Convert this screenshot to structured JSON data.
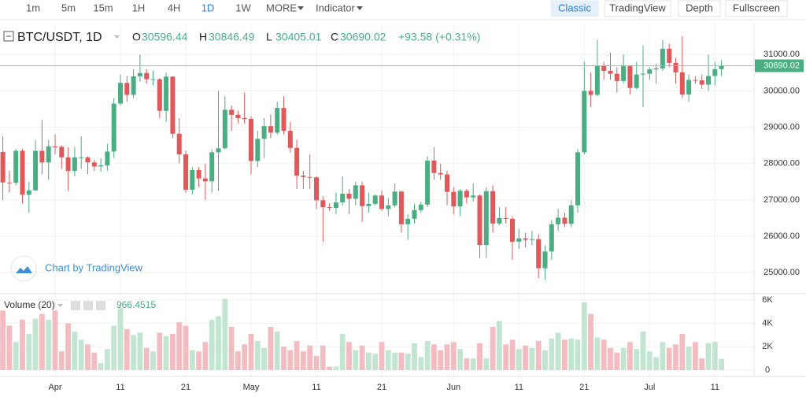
{
  "toolbar": {
    "intervals": [
      "1m",
      "5m",
      "15m",
      "1H",
      "4H",
      "1D",
      "1W"
    ],
    "active_interval": 5,
    "more": "MORE",
    "indicator": "Indicator",
    "views": [
      "Classic",
      "TradingView",
      "Depth",
      "Fullscreen"
    ],
    "active_view": 0
  },
  "watermark": "Chart by TradingView",
  "chart_data": {
    "type": "candlestick",
    "symbol": "BTC/USDT, 1D",
    "ohlc_prefixes": [
      "O",
      "H",
      "L",
      "C"
    ],
    "change_label": "+93.58 (+0.31%)",
    "categories": [
      null,
      null,
      null,
      null,
      null,
      null,
      null,
      null,
      "Apr",
      null,
      null,
      null,
      null,
      null,
      null,
      null,
      null,
      null,
      "11",
      null,
      null,
      null,
      null,
      null,
      null,
      null,
      null,
      null,
      "21",
      null,
      null,
      null,
      null,
      null,
      null,
      null,
      null,
      null,
      "May",
      null,
      null,
      null,
      null,
      null,
      null,
      null,
      null,
      null,
      "11",
      null,
      null,
      null,
      null,
      null,
      null,
      null,
      null,
      null,
      "21",
      null,
      null,
      null,
      null,
      null,
      null,
      null,
      null,
      null,
      null,
      "Jun",
      null,
      null,
      null,
      null,
      null,
      null,
      null,
      null,
      null,
      "11",
      null,
      null,
      null,
      null,
      null,
      null,
      null,
      null,
      null,
      "21",
      null,
      null,
      null,
      null,
      null,
      null,
      null,
      null,
      null,
      "Jul",
      null,
      null,
      null,
      null,
      null,
      null,
      null,
      null,
      null,
      "11",
      null
    ],
    "open": [
      28320,
      27480,
      27470,
      28350,
      27140,
      27260,
      28350,
      28030,
      28470,
      28460,
      28170,
      27800,
      28170,
      28170,
      28030,
      27920,
      27950,
      28330,
      29650,
      30220,
      29890,
      30400,
      30490,
      30320,
      30320,
      29450,
      30390,
      28820,
      28250,
      27280,
      27820,
      27590,
      27510,
      28310,
      28420,
      29480,
      29340,
      29250,
      29230,
      28070,
      28680,
      29030,
      28850,
      29530,
      28900,
      28430,
      27670,
      27630,
      27620,
      26990,
      26800,
      26780,
      26930,
      27170,
      27030,
      27400,
      26830,
      26890,
      27120,
      26750,
      26850,
      27230,
      26330,
      26480,
      26720,
      26870,
      28080,
      27740,
      27700,
      27220,
      26820,
      27250,
      27070,
      27120,
      25760,
      27240,
      26350,
      26500,
      26480,
      25850,
      25940,
      25900,
      25920,
      25120,
      25580,
      26330,
      26510,
      26340,
      26850,
      28310,
      30000,
      29890,
      30690,
      30550,
      30470,
      30270,
      30690,
      30080,
      30450,
      30470,
      30590,
      30620,
      31160,
      30770,
      30510,
      29900,
      30300,
      30290,
      30170,
      30410,
      30596.44
    ],
    "high": [
      28750,
      27800,
      28400,
      28400,
      27500,
      28650,
      29200,
      28650,
      28800,
      28500,
      28450,
      28450,
      28750,
      28200,
      28100,
      28150,
      28550,
      29800,
      30450,
      30400,
      30600,
      31000,
      30600,
      30550,
      30350,
      30500,
      30400,
      29250,
      28350,
      27900,
      27900,
      28000,
      28400,
      30000,
      29850,
      29600,
      29450,
      29950,
      29300,
      28900,
      29250,
      29350,
      29700,
      29850,
      29150,
      28650,
      27800,
      28250,
      27650,
      27100,
      26900,
      27200,
      27650,
      27300,
      27500,
      27500,
      27200,
      27150,
      27250,
      27050,
      27450,
      27250,
      26600,
      26900,
      26950,
      28200,
      28450,
      28000,
      27800,
      27350,
      27300,
      27300,
      27450,
      27150,
      27350,
      27400,
      26800,
      26800,
      26550,
      26200,
      26100,
      26150,
      26050,
      25750,
      26450,
      26750,
      26650,
      27000,
      28400,
      30800,
      30500,
      31400,
      30800,
      31050,
      30650,
      31000,
      30700,
      30800,
      31250,
      30650,
      30750,
      31400,
      31300,
      30900,
      31500,
      30450,
      30400,
      30450,
      31000,
      30800,
      30846.49
    ],
    "low": [
      27000,
      27200,
      27400,
      26900,
      26650,
      27250,
      27700,
      27550,
      28250,
      27850,
      27250,
      27650,
      27850,
      27700,
      27800,
      27780,
      27800,
      28150,
      29600,
      29700,
      29800,
      30250,
      30200,
      30150,
      29250,
      29150,
      28700,
      28000,
      27200,
      27150,
      27350,
      27000,
      27200,
      27250,
      28400,
      28900,
      29100,
      29100,
      27700,
      27900,
      28150,
      28700,
      28800,
      28800,
      28300,
      27300,
      27300,
      27300,
      26750,
      25850,
      26700,
      26600,
      26850,
      26600,
      26850,
      26400,
      26650,
      26850,
      26700,
      26550,
      26800,
      26100,
      25900,
      26350,
      26650,
      26800,
      27550,
      27550,
      26850,
      26600,
      26550,
      26900,
      26950,
      25400,
      25400,
      26100,
      26300,
      26350,
      25350,
      25650,
      25700,
      25750,
      24850,
      24800,
      25350,
      26150,
      26250,
      26250,
      26650,
      28250,
      29550,
      29850,
      30300,
      30300,
      29950,
      30200,
      29900,
      30050,
      29550,
      30300,
      30200,
      30550,
      30650,
      30200,
      29800,
      29700,
      30200,
      30050,
      30000,
      30150,
      30405.01
    ],
    "close": [
      27480,
      27470,
      28350,
      27140,
      27260,
      28350,
      28030,
      28470,
      28460,
      28170,
      27800,
      28170,
      28170,
      28030,
      27920,
      27950,
      28330,
      29650,
      30220,
      29890,
      30400,
      30490,
      30320,
      30320,
      29450,
      30390,
      28820,
      28250,
      27280,
      27820,
      27590,
      27510,
      28310,
      28420,
      29480,
      29340,
      29250,
      29230,
      28070,
      28680,
      29030,
      28850,
      29530,
      28900,
      28430,
      27670,
      27630,
      27620,
      26990,
      26800,
      26780,
      26930,
      27170,
      27030,
      27400,
      26830,
      26890,
      27120,
      26750,
      26850,
      27230,
      26330,
      26480,
      26720,
      26870,
      28080,
      27740,
      27700,
      27220,
      26820,
      27250,
      27070,
      27120,
      25760,
      27240,
      26350,
      26500,
      26480,
      25850,
      25940,
      25900,
      25920,
      25120,
      25580,
      26330,
      26510,
      26340,
      26850,
      28310,
      30000,
      29890,
      30690,
      30550,
      30470,
      30270,
      30690,
      30080,
      30450,
      30470,
      30590,
      30620,
      31160,
      30770,
      30510,
      29900,
      30300,
      30290,
      30170,
      30410,
      30596.44,
      30690.02
    ],
    "volume": [
      5100,
      3800,
      2400,
      4300,
      3100,
      4400,
      4800,
      4300,
      5100,
      1600,
      4000,
      3300,
      2600,
      2200,
      1500,
      600,
      1800,
      3800,
      5300,
      3500,
      3000,
      3200,
      1900,
      1600,
      3200,
      2900,
      3100,
      4100,
      3800,
      1700,
      1600,
      2400,
      4300,
      4600,
      6100,
      3700,
      1600,
      2200,
      3100,
      2500,
      1900,
      3700,
      3300,
      2000,
      1700,
      2500,
      1600,
      2100,
      1200,
      2100,
      300,
      300,
      3100,
      2400,
      1700,
      2100,
      1500,
      1400,
      2400,
      1700,
      1500,
      1500,
      1400,
      2300,
      1100,
      2500,
      2200,
      1700,
      2200,
      2400,
      1800,
      1000,
      1000,
      2300,
      1000,
      3700,
      4200,
      2200,
      2600,
      1800,
      2100,
      1900,
      2500,
      1700,
      2700,
      3200,
      2600,
      2700,
      2600,
      5800,
      4800,
      2800,
      2600,
      1900,
      1500,
      1900,
      2400,
      1800,
      3300,
      1600,
      1100,
      2400,
      1900,
      2200,
      3100,
      2000,
      2400,
      1000,
      2300,
      2400,
      966.4515
    ],
    "volume_label": "Volume (20)",
    "up_color": "#4bae82",
    "down_color": "#e0585a",
    "up_volume_color": "#c2e5d2",
    "down_volume_color": "#f3bcc0",
    "ylim": [
      24440,
      31850
    ],
    "yticks": [
      {
        "value": 25000,
        "label": "25000.00"
      },
      {
        "value": 26000,
        "label": "26000.00"
      },
      {
        "value": 27000,
        "label": "27000.00"
      },
      {
        "value": 28000,
        "label": "28000.00"
      },
      {
        "value": 29000,
        "label": "29000.00"
      },
      {
        "value": 30000,
        "label": "30000.00"
      },
      {
        "value": 31000,
        "label": "31000.00"
      }
    ],
    "volume_ylim": [
      0,
      6600
    ],
    "volume_yticks": [
      0,
      {
        "value": 2000,
        "label": "2K"
      },
      {
        "value": 4000,
        "label": "4K"
      },
      {
        "value": 6000,
        "label": "6K"
      }
    ],
    "grid": true
  }
}
